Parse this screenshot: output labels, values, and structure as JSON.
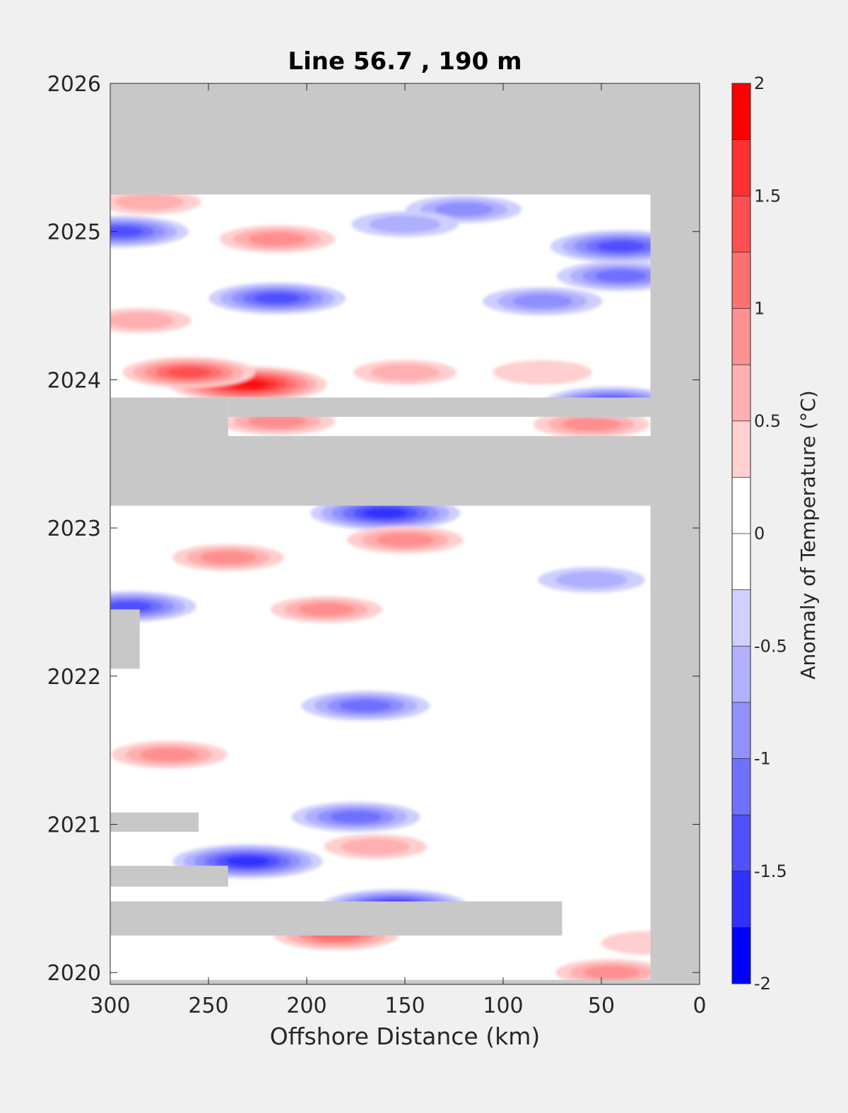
{
  "chart_data": {
    "type": "heatmap",
    "title": "Line 56.7 , 190 m",
    "xlabel": "Offshore Distance (km)",
    "ylabel": "",
    "x_ticks": [
      300,
      250,
      200,
      150,
      100,
      50,
      0
    ],
    "y_ticks": [
      2020,
      2021,
      2022,
      2023,
      2024,
      2025,
      2026
    ],
    "xlim": [
      300,
      0
    ],
    "x_reversed": true,
    "ylim": [
      2019.92,
      2026
    ],
    "grid": false,
    "missing_color": "#c8c8c8",
    "colorbar": {
      "label": "Anomaly of Temperature (°C)",
      "ticks": [
        "2",
        "1.5",
        "1",
        "0.5",
        "0",
        "-0.5",
        "-1",
        "-1.5",
        "-2"
      ],
      "levels": [
        -2,
        -1.75,
        -1.5,
        -1.25,
        -1,
        -0.75,
        -0.5,
        -0.25,
        0.25,
        0.5,
        0.75,
        1,
        1.25,
        1.5,
        1.75,
        2
      ],
      "colors": [
        "#0000ff",
        "#2020ff",
        "#4040ff",
        "#6060ff",
        "#8080ff",
        "#a0a0ff",
        "#c0c0ff",
        "#e0e0ff",
        "#ffffff",
        "#ffffff",
        "#ffe0e0",
        "#ffc0c0",
        "#ffa0a0",
        "#ff8080",
        "#ff6060",
        "#ff4040",
        "#ff2020",
        "#ff0000"
      ]
    },
    "no_data_regions": [
      {
        "x": [
          300,
          0
        ],
        "y": [
          2025.25,
          2026
        ]
      },
      {
        "x": [
          25,
          0
        ],
        "y": [
          2019.92,
          2026
        ]
      },
      {
        "x": [
          300,
          25
        ],
        "y": [
          2023.15,
          2023.62
        ]
      },
      {
        "x": [
          300,
          240
        ],
        "y": [
          2023.62,
          2023.88
        ]
      },
      {
        "x": [
          240,
          25
        ],
        "y": [
          2023.75,
          2023.88
        ]
      },
      {
        "x": [
          300,
          285
        ],
        "y": [
          2022.05,
          2022.45
        ]
      },
      {
        "x": [
          300,
          255
        ],
        "y": [
          2020.95,
          2021.08
        ]
      },
      {
        "x": [
          300,
          240
        ],
        "y": [
          2020.58,
          2020.72
        ]
      },
      {
        "x": [
          300,
          70
        ],
        "y": [
          2020.25,
          2020.48
        ]
      },
      {
        "x": [
          300,
          0
        ],
        "y": [
          2019.92,
          2019.95
        ]
      }
    ],
    "anomaly_features": [
      {
        "x": 230,
        "y": 2023.97,
        "value": 1.9
      },
      {
        "x": 260,
        "y": 2024.05,
        "value": 1.3
      },
      {
        "x": 215,
        "y": 2023.72,
        "value": 0.9
      },
      {
        "x": 55,
        "y": 2023.7,
        "value": 0.9
      },
      {
        "x": 150,
        "y": 2024.05,
        "value": 0.6
      },
      {
        "x": 215,
        "y": 2024.95,
        "value": 0.9
      },
      {
        "x": 280,
        "y": 2025.2,
        "value": 0.6
      },
      {
        "x": 285,
        "y": 2024.4,
        "value": 0.6
      },
      {
        "x": 80,
        "y": 2024.05,
        "value": 0.5
      },
      {
        "x": 215,
        "y": 2024.55,
        "value": -1.4
      },
      {
        "x": 295,
        "y": 2025.0,
        "value": -1.4
      },
      {
        "x": 40,
        "y": 2024.9,
        "value": -1.5
      },
      {
        "x": 40,
        "y": 2024.7,
        "value": -1.2
      },
      {
        "x": 80,
        "y": 2024.53,
        "value": -1.0
      },
      {
        "x": 120,
        "y": 2025.15,
        "value": -0.9
      },
      {
        "x": 150,
        "y": 2025.05,
        "value": -0.7
      },
      {
        "x": 160,
        "y": 2023.1,
        "value": -1.7
      },
      {
        "x": 45,
        "y": 2023.85,
        "value": -1.3
      },
      {
        "x": 150,
        "y": 2022.92,
        "value": 0.9
      },
      {
        "x": 240,
        "y": 2022.8,
        "value": 0.8
      },
      {
        "x": 290,
        "y": 2022.47,
        "value": -1.3
      },
      {
        "x": 55,
        "y": 2022.65,
        "value": -0.7
      },
      {
        "x": 190,
        "y": 2022.45,
        "value": 0.8
      },
      {
        "x": 170,
        "y": 2021.8,
        "value": -1.2
      },
      {
        "x": 270,
        "y": 2021.47,
        "value": 0.9
      },
      {
        "x": 175,
        "y": 2021.05,
        "value": -1.2
      },
      {
        "x": 230,
        "y": 2020.75,
        "value": -1.7
      },
      {
        "x": 165,
        "y": 2020.85,
        "value": 0.6
      },
      {
        "x": 155,
        "y": 2020.45,
        "value": -1.6
      },
      {
        "x": 185,
        "y": 2020.25,
        "value": 1.1
      },
      {
        "x": 45,
        "y": 2020.0,
        "value": 0.8
      },
      {
        "x": 25,
        "y": 2020.2,
        "value": 0.5
      }
    ]
  }
}
